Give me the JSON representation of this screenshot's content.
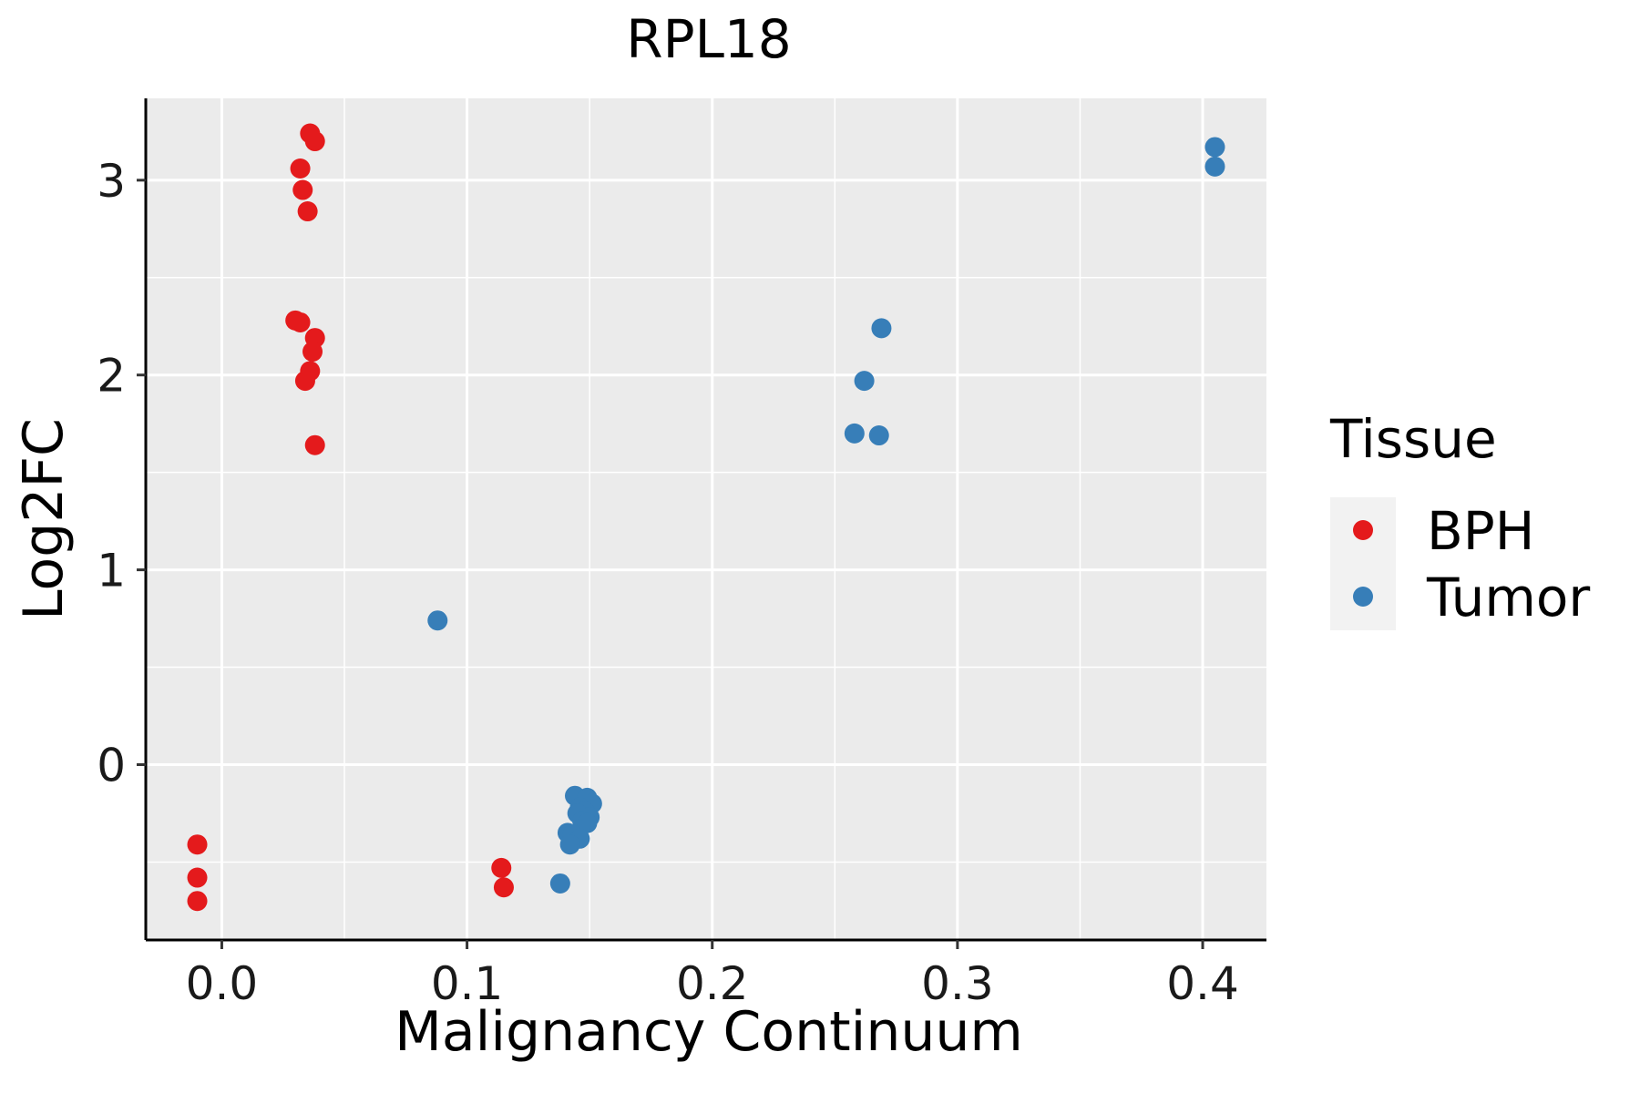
{
  "chart_data": {
    "type": "scatter",
    "title": "RPL18",
    "xlabel": "Malignancy Continuum",
    "ylabel": "Log2FC",
    "xlim": [
      -0.031,
      0.426
    ],
    "ylim": [
      -0.9,
      3.42
    ],
    "x_ticks": [
      0.0,
      0.1,
      0.2,
      0.3,
      0.4
    ],
    "x_tick_labels": [
      "0.0",
      "0.1",
      "0.2",
      "0.3",
      "0.4"
    ],
    "y_ticks": [
      0,
      1,
      2,
      3
    ],
    "y_tick_labels": [
      "0",
      "1",
      "2",
      "3"
    ],
    "grid": true,
    "legend": {
      "title": "Tissue",
      "placement": "right",
      "entries": [
        {
          "label": "BPH",
          "color": "#E41A1C"
        },
        {
          "label": "Tumor",
          "color": "#377EB8"
        }
      ]
    },
    "colors": {
      "panel": "#EBEBEB",
      "grid": "#FFFFFF",
      "axis": "#000000"
    },
    "series": [
      {
        "name": "BPH",
        "color": "#E41A1C",
        "x": [
          0.036,
          0.038,
          0.032,
          0.033,
          0.035,
          0.03,
          0.032,
          0.038,
          0.037,
          0.036,
          0.034,
          0.038,
          -0.01,
          -0.01,
          -0.01,
          0.114,
          0.115
        ],
        "y": [
          3.24,
          3.2,
          3.06,
          2.95,
          2.84,
          2.28,
          2.27,
          2.19,
          2.12,
          2.02,
          1.97,
          1.64,
          -0.41,
          -0.58,
          -0.7,
          -0.53,
          -0.63
        ]
      },
      {
        "name": "Tumor",
        "color": "#377EB8",
        "x": [
          0.405,
          0.405,
          0.269,
          0.262,
          0.268,
          0.258,
          0.088,
          0.144,
          0.149,
          0.151,
          0.146,
          0.148,
          0.145,
          0.15,
          0.147,
          0.149,
          0.141,
          0.143,
          0.146,
          0.142,
          0.138
        ],
        "y": [
          3.17,
          3.07,
          2.24,
          1.97,
          1.69,
          1.7,
          0.74,
          -0.16,
          -0.17,
          -0.2,
          -0.22,
          -0.24,
          -0.25,
          -0.27,
          -0.29,
          -0.3,
          -0.35,
          -0.36,
          -0.38,
          -0.41,
          -0.61
        ]
      }
    ]
  }
}
